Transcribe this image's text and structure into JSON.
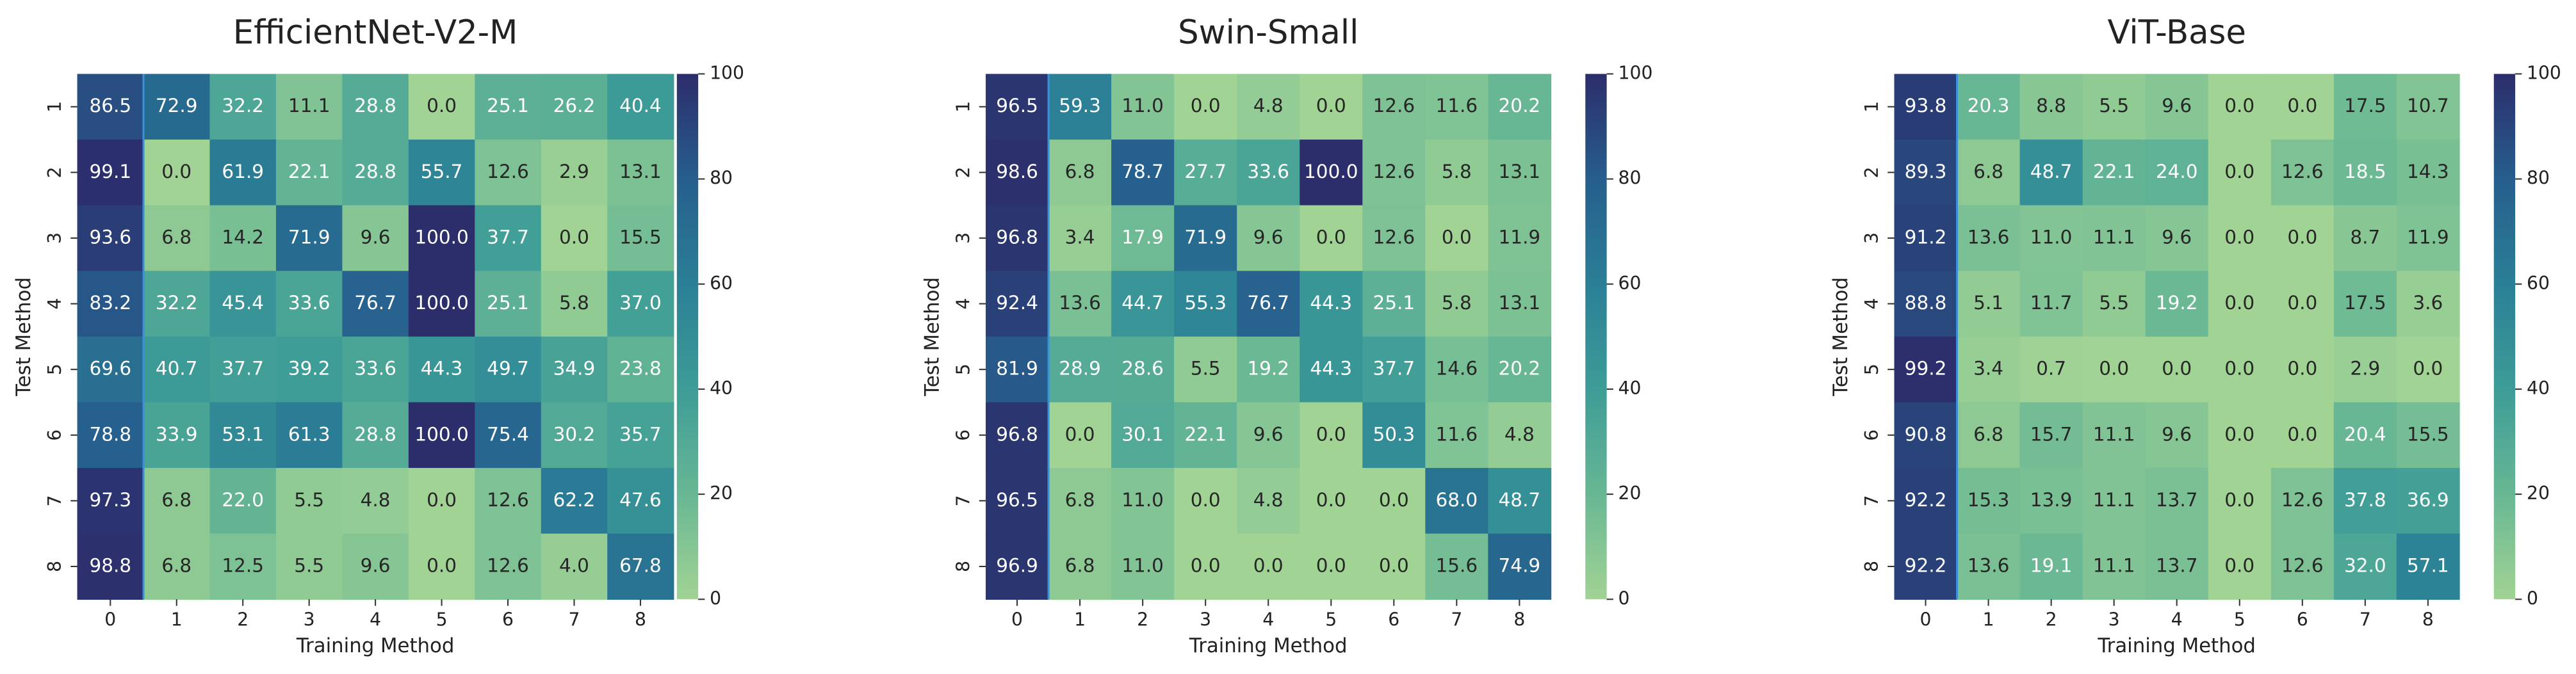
{
  "chart_data": [
    {
      "type": "heatmap",
      "title": "EfficientNet-V2-M",
      "xlabel": "Training Method",
      "ylabel": "Test Method",
      "x": [
        "0",
        "1",
        "2",
        "3",
        "4",
        "5",
        "6",
        "7",
        "8"
      ],
      "y": [
        "1",
        "2",
        "3",
        "4",
        "5",
        "6",
        "7",
        "8"
      ],
      "zlim": [
        0,
        100
      ],
      "zticks": [
        0,
        20,
        40,
        60,
        80,
        100
      ],
      "colormap": [
        "#a1d394",
        "#68b794",
        "#3d9c97",
        "#2a7f96",
        "#265e8d",
        "#2c2d6b"
      ],
      "values": [
        [
          86.5,
          72.9,
          32.2,
          11.1,
          28.8,
          0,
          25.1,
          26.2,
          40.4
        ],
        [
          99.1,
          0,
          61.9,
          22.1,
          28.8,
          55.7,
          12.6,
          2.9,
          13.1
        ],
        [
          93.6,
          6.8,
          14.2,
          71.9,
          9.6,
          100,
          37.7,
          0,
          15.5
        ],
        [
          83.2,
          32.2,
          45.4,
          33.6,
          76.7,
          100,
          25.1,
          5.8,
          37
        ],
        [
          69.6,
          40.7,
          37.7,
          39.2,
          33.6,
          44.3,
          49.7,
          34.9,
          23.8
        ],
        [
          78.8,
          33.9,
          53.1,
          61.3,
          28.8,
          100,
          75.4,
          30.2,
          35.7
        ],
        [
          97.3,
          6.8,
          22,
          5.5,
          4.8,
          0,
          12.6,
          62.2,
          47.6
        ],
        [
          98.8,
          6.8,
          12.5,
          5.5,
          9.6,
          0,
          12.6,
          4,
          67.8
        ]
      ],
      "value_labels": [
        [
          "86.5",
          "72.9",
          "32.2",
          "11.1",
          "28.8",
          "0.0",
          "25.1",
          "26.2",
          "40.4"
        ],
        [
          "99.1",
          "0.0",
          "61.9",
          "22.1",
          "28.8",
          "55.7",
          "12.6",
          "2.9",
          "13.1"
        ],
        [
          "93.6",
          "6.8",
          "14.2",
          "71.9",
          "9.6",
          "100.0",
          "37.7",
          "0.0",
          "15.5"
        ],
        [
          "83.2",
          "32.2",
          "45.4",
          "33.6",
          "76.7",
          "100.0",
          "25.1",
          "5.8",
          "37.0"
        ],
        [
          "69.6",
          "40.7",
          "37.7",
          "39.2",
          "33.6",
          "44.3",
          "49.7",
          "34.9",
          "23.8"
        ],
        [
          "78.8",
          "33.9",
          "53.1",
          "61.3",
          "28.8",
          "100.0",
          "75.4",
          "30.2",
          "35.7"
        ],
        [
          "97.3",
          "6.8",
          "22.0",
          "5.5",
          "4.8",
          "0.0",
          "12.6",
          "62.2",
          "47.6"
        ],
        [
          "98.8",
          "6.8",
          "12.5",
          "5.5",
          "9.6",
          "0.0",
          "12.6",
          "4.0",
          "67.8"
        ]
      ]
    },
    {
      "type": "heatmap",
      "title": "Swin-Small",
      "xlabel": "Training Method",
      "ylabel": "Test Method",
      "x": [
        "0",
        "1",
        "2",
        "3",
        "4",
        "5",
        "6",
        "7",
        "8"
      ],
      "y": [
        "1",
        "2",
        "3",
        "4",
        "5",
        "6",
        "7",
        "8"
      ],
      "zlim": [
        0,
        100
      ],
      "zticks": [
        0,
        20,
        40,
        60,
        80,
        100
      ],
      "colormap": [
        "#a1d394",
        "#68b794",
        "#3d9c97",
        "#2a7f96",
        "#265e8d",
        "#2c2d6b"
      ],
      "values": [
        [
          96.5,
          59.3,
          11,
          0,
          4.8,
          0,
          12.6,
          11.6,
          20.2
        ],
        [
          98.6,
          6.8,
          78.7,
          27.7,
          33.6,
          100,
          12.6,
          5.8,
          13.1
        ],
        [
          96.8,
          3.4,
          17.9,
          71.9,
          9.6,
          0,
          12.6,
          0,
          11.9
        ],
        [
          92.4,
          13.6,
          44.7,
          55.3,
          76.7,
          44.3,
          25.1,
          5.8,
          13.1
        ],
        [
          81.9,
          28.9,
          28.6,
          5.5,
          19.2,
          44.3,
          37.7,
          14.6,
          20.2
        ],
        [
          96.8,
          0,
          30.1,
          22.1,
          9.6,
          0,
          50.3,
          11.6,
          4.8
        ],
        [
          96.5,
          6.8,
          11,
          0,
          4.8,
          0,
          0,
          68,
          48.7
        ],
        [
          96.9,
          6.8,
          11,
          0,
          0,
          0,
          0,
          15.6,
          74.9
        ]
      ],
      "value_labels": [
        [
          "96.5",
          "59.3",
          "11.0",
          "0.0",
          "4.8",
          "0.0",
          "12.6",
          "11.6",
          "20.2"
        ],
        [
          "98.6",
          "6.8",
          "78.7",
          "27.7",
          "33.6",
          "100.0",
          "12.6",
          "5.8",
          "13.1"
        ],
        [
          "96.8",
          "3.4",
          "17.9",
          "71.9",
          "9.6",
          "0.0",
          "12.6",
          "0.0",
          "11.9"
        ],
        [
          "92.4",
          "13.6",
          "44.7",
          "55.3",
          "76.7",
          "44.3",
          "25.1",
          "5.8",
          "13.1"
        ],
        [
          "81.9",
          "28.9",
          "28.6",
          "5.5",
          "19.2",
          "44.3",
          "37.7",
          "14.6",
          "20.2"
        ],
        [
          "96.8",
          "0.0",
          "30.1",
          "22.1",
          "9.6",
          "0.0",
          "50.3",
          "11.6",
          "4.8"
        ],
        [
          "96.5",
          "6.8",
          "11.0",
          "0.0",
          "4.8",
          "0.0",
          "0.0",
          "68.0",
          "48.7"
        ],
        [
          "96.9",
          "6.8",
          "11.0",
          "0.0",
          "0.0",
          "0.0",
          "0.0",
          "15.6",
          "74.9"
        ]
      ]
    },
    {
      "type": "heatmap",
      "title": "ViT-Base",
      "xlabel": "Training Method",
      "ylabel": "Test Method",
      "x": [
        "0",
        "1",
        "2",
        "3",
        "4",
        "5",
        "6",
        "7",
        "8"
      ],
      "y": [
        "1",
        "2",
        "3",
        "4",
        "5",
        "6",
        "7",
        "8"
      ],
      "zlim": [
        0,
        100
      ],
      "zticks": [
        0,
        20,
        40,
        60,
        80,
        100
      ],
      "colormap": [
        "#a1d394",
        "#68b794",
        "#3d9c97",
        "#2a7f96",
        "#265e8d",
        "#2c2d6b"
      ],
      "values": [
        [
          93.8,
          20.3,
          8.8,
          5.5,
          9.6,
          0,
          0,
          17.5,
          10.7
        ],
        [
          89.3,
          6.8,
          48.7,
          22.1,
          24,
          0,
          12.6,
          18.5,
          14.3
        ],
        [
          91.2,
          13.6,
          11,
          11.1,
          9.6,
          0,
          0,
          8.7,
          11.9
        ],
        [
          88.8,
          5.1,
          11.7,
          5.5,
          19.2,
          0,
          0,
          17.5,
          3.6
        ],
        [
          99.2,
          3.4,
          0.7,
          0,
          0,
          0,
          0,
          2.9,
          0
        ],
        [
          90.8,
          6.8,
          15.7,
          11.1,
          9.6,
          0,
          0,
          20.4,
          15.5
        ],
        [
          92.2,
          15.3,
          13.9,
          11.1,
          13.7,
          0,
          12.6,
          37.8,
          36.9
        ],
        [
          92.2,
          13.6,
          19.1,
          11.1,
          13.7,
          0,
          12.6,
          32,
          57.1
        ]
      ],
      "value_labels": [
        [
          "93.8",
          "20.3",
          "8.8",
          "5.5",
          "9.6",
          "0.0",
          "0.0",
          "17.5",
          "10.7"
        ],
        [
          "89.3",
          "6.8",
          "48.7",
          "22.1",
          "24.0",
          "0.0",
          "12.6",
          "18.5",
          "14.3"
        ],
        [
          "91.2",
          "13.6",
          "11.0",
          "11.1",
          "9.6",
          "0.0",
          "0.0",
          "8.7",
          "11.9"
        ],
        [
          "88.8",
          "5.1",
          "11.7",
          "5.5",
          "19.2",
          "0.0",
          "0.0",
          "17.5",
          "3.6"
        ],
        [
          "99.2",
          "3.4",
          "0.7",
          "0.0",
          "0.0",
          "0.0",
          "0.0",
          "2.9",
          "0.0"
        ],
        [
          "90.8",
          "6.8",
          "15.7",
          "11.1",
          "9.6",
          "0.0",
          "0.0",
          "20.4",
          "15.5"
        ],
        [
          "92.2",
          "15.3",
          "13.9",
          "11.1",
          "13.7",
          "0.0",
          "12.6",
          "37.8",
          "36.9"
        ],
        [
          "92.2",
          "13.6",
          "19.1",
          "11.1",
          "13.7",
          "0.0",
          "12.6",
          "32.0",
          "57.1"
        ]
      ]
    }
  ]
}
